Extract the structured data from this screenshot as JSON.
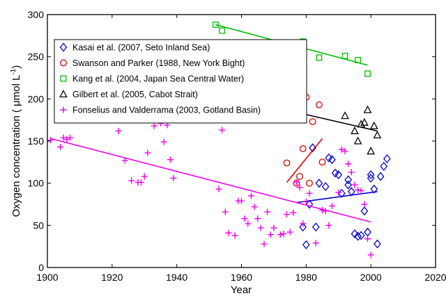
{
  "chart_data": {
    "type": "scatter",
    "xlabel": "Year",
    "ylabel_main": "Oxygen concentration ( μmol L",
    "ylabel_sup": "-1",
    "ylabel_close": ")",
    "xlim": [
      1900,
      2020
    ],
    "ylim": [
      0,
      300
    ],
    "xticks": [
      1900,
      1920,
      1940,
      1960,
      1980,
      2000,
      2020
    ],
    "yticks": [
      0,
      50,
      100,
      150,
      200,
      250,
      300
    ],
    "grid": false,
    "legend_position": "upper-left",
    "series": [
      {
        "name": "Kasai et al. (2007, Seto Inland Sea)",
        "marker": "diamond",
        "color": "#0000cc",
        "x": [
          1979,
          1980,
          1981,
          1982,
          1983,
          1984,
          1986,
          1987,
          1988,
          1989,
          1990,
          1991,
          1993,
          1993,
          1994,
          1995,
          1996,
          1997,
          1998,
          1999,
          2000,
          2000,
          2001,
          2002,
          2003,
          2004,
          2005
        ],
        "y": [
          48,
          27,
          75,
          142,
          48,
          100,
          96,
          130,
          128,
          112,
          110,
          88,
          104,
          98,
          90,
          40,
          37,
          38,
          67,
          42,
          110,
          106,
          93,
          28,
          108,
          120,
          129
        ],
        "trend": {
          "x": [
            1977,
            2002
          ],
          "y": [
            77,
            90
          ]
        }
      },
      {
        "name": "Swanson and Parker (1988, New York Bight)",
        "marker": "circle",
        "color": "#dd0000",
        "x": [
          1974,
          1977,
          1978,
          1979,
          1980,
          1981,
          1982,
          1984,
          1985
        ],
        "y": [
          124,
          100,
          108,
          141,
          202,
          100,
          173,
          193,
          125
        ],
        "trend": {
          "x": [
            1974,
            1985
          ],
          "y": [
            101,
            153
          ]
        }
      },
      {
        "name": "Kang et al. (2004, Japan Sea Central Water)",
        "marker": "square",
        "color": "#00bb00",
        "x": [
          1952,
          1954,
          1969,
          1977,
          1979,
          1984,
          1992,
          1996,
          1999
        ],
        "y": [
          288,
          281,
          267,
          261,
          268,
          249,
          251,
          246,
          230
        ],
        "trend": {
          "x": [
            1952,
            1999
          ],
          "y": [
            288,
            240
          ]
        }
      },
      {
        "name": "Gilbert et al. (2005, Cabot Strait)",
        "marker": "triangle",
        "color": "#000000",
        "x": [
          1960,
          1961,
          1962,
          1967,
          1968,
          1969,
          1970,
          1992,
          1995,
          1996,
          1997,
          1998,
          1999,
          2000,
          2001,
          2002
        ],
        "y": [
          185,
          180,
          190,
          212,
          200,
          203,
          196,
          180,
          162,
          150,
          170,
          172,
          187,
          138,
          168,
          157
        ],
        "trend": {
          "x": [
            1960,
            2002
          ],
          "y": [
            199,
            162
          ]
        }
      },
      {
        "name": "Fonselius and Valderrama (2003, Gotland Basin)",
        "marker": "plus",
        "color": "#ee00ee",
        "x": [
          1901,
          1904,
          1905,
          1906,
          1907,
          1922,
          1924,
          1926,
          1928,
          1929,
          1930,
          1931,
          1933,
          1935,
          1936,
          1937,
          1938,
          1939,
          1953,
          1954,
          1955,
          1956,
          1958,
          1959,
          1960,
          1961,
          1962,
          1963,
          1964,
          1965,
          1966,
          1967,
          1968,
          1969,
          1970,
          1972,
          1973,
          1974,
          1975,
          1976,
          1977,
          1978,
          1979,
          1980,
          1981,
          1983,
          1985,
          1986,
          1987,
          1988,
          1990,
          1991,
          1992,
          1993,
          1994,
          1995,
          1996,
          1997,
          1998,
          1999,
          2000
        ],
        "y": [
          151,
          143,
          154,
          152,
          154,
          162,
          127,
          103,
          101,
          101,
          108,
          136,
          168,
          171,
          149,
          169,
          128,
          106,
          93,
          163,
          66,
          41,
          38,
          79,
          79,
          58,
          52,
          85,
          72,
          58,
          47,
          28,
          66,
          39,
          47,
          39,
          40,
          63,
          42,
          65,
          101,
          95,
          52,
          78,
          88,
          29,
          68,
          67,
          50,
          73,
          89,
          140,
          138,
          123,
          113,
          98,
          92,
          91,
          75,
          34,
          15
        ],
        "trend": {
          "x": [
            1901,
            2000
          ],
          "y": [
            153,
            54
          ]
        }
      }
    ]
  }
}
